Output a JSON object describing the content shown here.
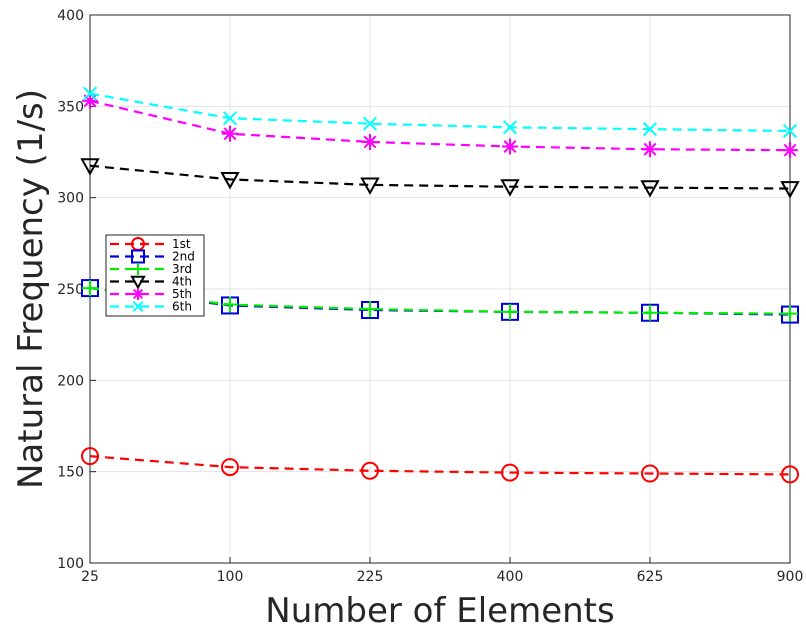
{
  "chart_data": {
    "type": "line",
    "title": "",
    "xlabel": "Number of Elements",
    "ylabel": "Natural Frequency (1/s)",
    "categories": [
      "25",
      "100",
      "225",
      "400",
      "625",
      "900"
    ],
    "ylim": [
      100,
      400
    ],
    "yticks": [
      "100",
      "150",
      "200",
      "250",
      "300",
      "350",
      "400"
    ],
    "grid": true,
    "legend_position": "left",
    "series": [
      {
        "name": "1st",
        "color": "#ff0000",
        "marker": "circle",
        "values": [
          158.5,
          152.5,
          150.5,
          149.5,
          149.0,
          148.5
        ]
      },
      {
        "name": "2nd",
        "color": "#0000dd",
        "marker": "square",
        "values": [
          250.5,
          241.0,
          238.5,
          237.5,
          237.0,
          236.0
        ]
      },
      {
        "name": "3rd",
        "color": "#00ee00",
        "marker": "plus",
        "values": [
          250.5,
          241.5,
          239.0,
          237.5,
          237.0,
          236.5
        ]
      },
      {
        "name": "4th",
        "color": "#000000",
        "marker": "triangle-down",
        "values": [
          317.5,
          310.0,
          307.0,
          306.0,
          305.5,
          305.0
        ]
      },
      {
        "name": "5th",
        "color": "#ff00ff",
        "marker": "asterisk",
        "values": [
          353.0,
          335.0,
          330.5,
          328.0,
          326.5,
          326.0
        ]
      },
      {
        "name": "6th",
        "color": "#00ffff",
        "marker": "x",
        "values": [
          357.0,
          343.5,
          340.5,
          338.5,
          337.5,
          336.5
        ]
      }
    ]
  }
}
